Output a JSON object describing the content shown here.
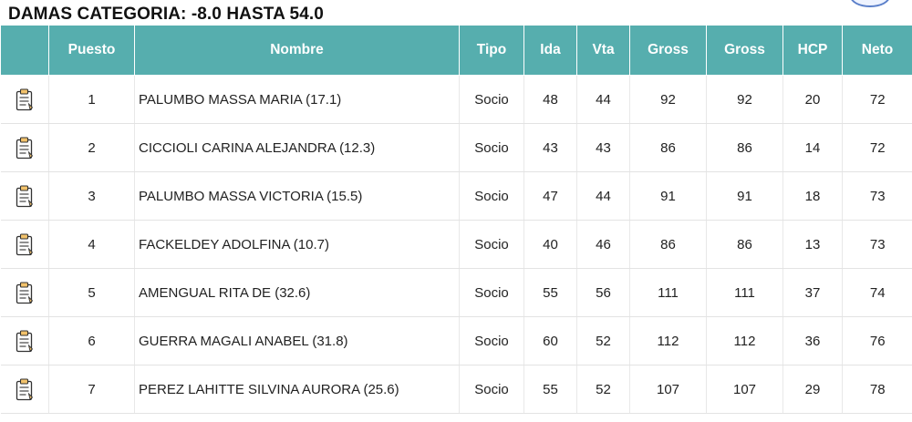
{
  "header": {
    "title": "DAMAS CATEGORIA: -8.0 HASTA 54.0"
  },
  "table": {
    "columns": [
      "",
      "Puesto",
      "Nombre",
      "Tipo",
      "Ida",
      "Vta",
      "Gross",
      "Gross",
      "HCP",
      "Neto"
    ],
    "row_icon": "scorecard-icon",
    "rows": [
      {
        "puesto": "1",
        "nombre": "PALUMBO MASSA MARIA (17.1)",
        "tipo": "Socio",
        "ida": "48",
        "vta": "44",
        "gross1": "92",
        "gross2": "92",
        "hcp": "20",
        "neto": "72"
      },
      {
        "puesto": "2",
        "nombre": "CICCIOLI CARINA ALEJANDRA (12.3)",
        "tipo": "Socio",
        "ida": "43",
        "vta": "43",
        "gross1": "86",
        "gross2": "86",
        "hcp": "14",
        "neto": "72"
      },
      {
        "puesto": "3",
        "nombre": "PALUMBO MASSA VICTORIA (15.5)",
        "tipo": "Socio",
        "ida": "47",
        "vta": "44",
        "gross1": "91",
        "gross2": "91",
        "hcp": "18",
        "neto": "73"
      },
      {
        "puesto": "4",
        "nombre": "FACKELDEY ADOLFINA (10.7)",
        "tipo": "Socio",
        "ida": "40",
        "vta": "46",
        "gross1": "86",
        "gross2": "86",
        "hcp": "13",
        "neto": "73"
      },
      {
        "puesto": "5",
        "nombre": "AMENGUAL RITA DE (32.6)",
        "tipo": "Socio",
        "ida": "55",
        "vta": "56",
        "gross1": "111",
        "gross2": "111",
        "hcp": "37",
        "neto": "74"
      },
      {
        "puesto": "6",
        "nombre": "GUERRA MAGALI ANABEL (31.8)",
        "tipo": "Socio",
        "ida": "60",
        "vta": "52",
        "gross1": "112",
        "gross2": "112",
        "hcp": "36",
        "neto": "76"
      },
      {
        "puesto": "7",
        "nombre": "PEREZ LAHITTE SILVINA AURORA (25.6)",
        "tipo": "Socio",
        "ida": "55",
        "vta": "52",
        "gross1": "107",
        "gross2": "107",
        "hcp": "29",
        "neto": "78"
      }
    ]
  },
  "colors": {
    "header_bg": "#56aeae",
    "header_text": "#ffffff"
  }
}
